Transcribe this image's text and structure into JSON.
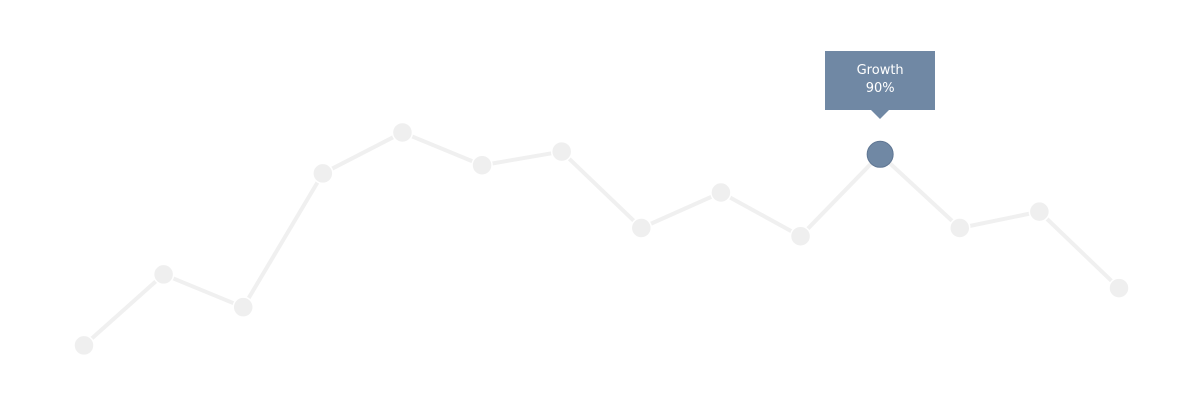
{
  "chart_data": {
    "type": "line",
    "title": "",
    "xlabel": "",
    "ylabel": "",
    "ylim": [
      0,
      100
    ],
    "grid": false,
    "series": [
      {
        "values": [
          20,
          46,
          34,
          83,
          98,
          86,
          91,
          63,
          76,
          60,
          90,
          63,
          69,
          41
        ]
      }
    ],
    "highlight": {
      "index": 10,
      "label": "Growth",
      "value_label": "90%"
    },
    "colors": {
      "line": "#f0f0f0",
      "point": "#efefef",
      "highlight": "#7088a4",
      "tooltip_bg": "#7088a4",
      "tooltip_text": "#ffffff"
    }
  }
}
